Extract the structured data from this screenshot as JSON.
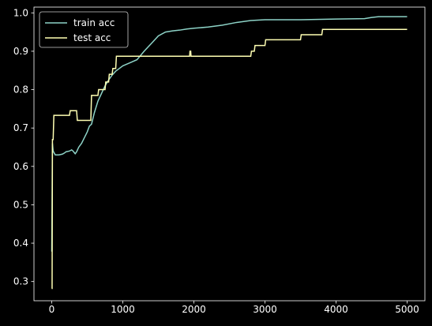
{
  "chart_data": {
    "type": "line",
    "title": "",
    "xlabel": "",
    "ylabel": "",
    "xlim": [
      -250,
      5250
    ],
    "ylim": [
      0.25,
      1.015
    ],
    "xticks": [
      0,
      1000,
      2000,
      3000,
      4000,
      5000
    ],
    "xtick_labels": [
      "0",
      "1000",
      "2000",
      "3000",
      "4000",
      "5000"
    ],
    "yticks": [
      0.3,
      0.4,
      0.5,
      0.6,
      0.7,
      0.8,
      0.9,
      1.0
    ],
    "ytick_labels": [
      "0.3",
      "0.4",
      "0.5",
      "0.6",
      "0.7",
      "0.8",
      "0.9",
      "1.0"
    ],
    "grid": false,
    "legend": "upper left",
    "series": [
      {
        "name": "train acc",
        "color": "#8dd3c7",
        "x": [
          0,
          10,
          20,
          50,
          100,
          150,
          180,
          200,
          250,
          280,
          300,
          330,
          350,
          380,
          420,
          460,
          500,
          530,
          560,
          600,
          650,
          700,
          750,
          800,
          850,
          900,
          950,
          1000,
          1100,
          1200,
          1300,
          1400,
          1500,
          1600,
          1700,
          1800,
          1900,
          2000,
          2200,
          2400,
          2600,
          2800,
          3000,
          3500,
          4000,
          4400,
          4500,
          4600,
          5000
        ],
        "y": [
          0.378,
          0.66,
          0.64,
          0.63,
          0.63,
          0.632,
          0.635,
          0.638,
          0.64,
          0.643,
          0.64,
          0.633,
          0.638,
          0.65,
          0.66,
          0.675,
          0.69,
          0.705,
          0.71,
          0.74,
          0.77,
          0.79,
          0.81,
          0.825,
          0.838,
          0.848,
          0.855,
          0.862,
          0.87,
          0.878,
          0.9,
          0.92,
          0.94,
          0.95,
          0.953,
          0.955,
          0.958,
          0.96,
          0.963,
          0.968,
          0.975,
          0.98,
          0.982,
          0.982,
          0.984,
          0.985,
          0.988,
          0.99,
          0.99
        ]
      },
      {
        "name": "test acc",
        "color": "#ffffb3",
        "x": [
          0,
          5,
          10,
          20,
          30,
          250,
          260,
          350,
          360,
          550,
          560,
          650,
          660,
          750,
          760,
          800,
          810,
          850,
          860,
          900,
          910,
          1940,
          1945,
          1955,
          1960,
          2800,
          2810,
          2850,
          2860,
          3000,
          3010,
          3500,
          3510,
          3800,
          3810,
          5000
        ],
        "y": [
          0.282,
          0.282,
          0.67,
          0.67,
          0.733,
          0.733,
          0.745,
          0.745,
          0.72,
          0.72,
          0.785,
          0.785,
          0.8,
          0.8,
          0.82,
          0.82,
          0.84,
          0.84,
          0.855,
          0.855,
          0.887,
          0.887,
          0.9,
          0.9,
          0.887,
          0.887,
          0.9,
          0.9,
          0.915,
          0.915,
          0.93,
          0.93,
          0.943,
          0.943,
          0.957,
          0.957
        ]
      }
    ]
  }
}
